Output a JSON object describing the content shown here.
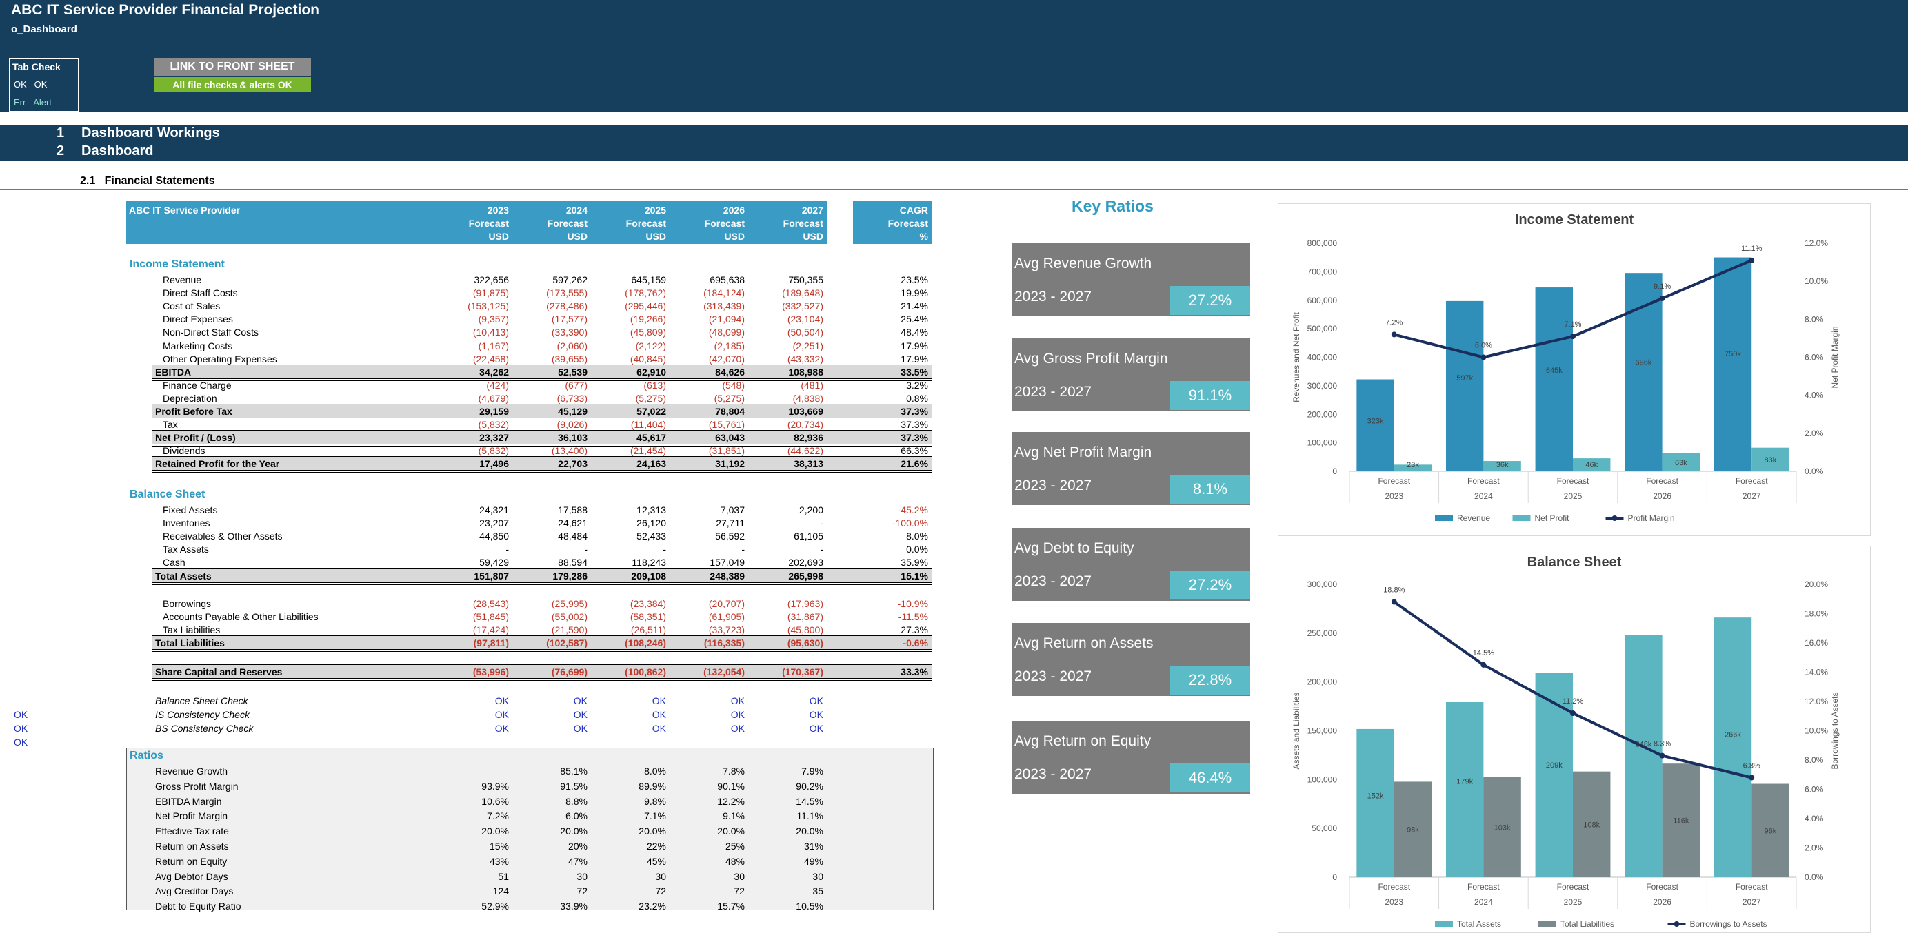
{
  "header": {
    "title": "ABC IT Service Provider Financial Projection",
    "subtitle": "o_Dashboard",
    "tab_check": "Tab Check",
    "ok1": "OK",
    "ok2": "OK",
    "err": "Err",
    "alert": "Alert",
    "link_button": "LINK TO FRONT SHEET",
    "checks_status": "All file checks & alerts OK"
  },
  "sections": {
    "s1_num": "1",
    "s1": "Dashboard Workings",
    "s2_num": "2",
    "s2": "Dashboard",
    "s21_num": "2.1",
    "s21": "Financial Statements"
  },
  "table": {
    "company": "ABC IT Service Provider",
    "years": [
      "2023",
      "2024",
      "2025",
      "2026",
      "2027"
    ],
    "forecast": "Forecast",
    "usd": "USD",
    "cagr": "CAGR",
    "cagr_forecast": "Forecast",
    "pct": "%",
    "income_title": "Income Statement",
    "income_rows": [
      {
        "label": "Revenue",
        "v": [
          "322,656",
          "597,262",
          "645,159",
          "695,638",
          "750,355"
        ],
        "c": "23.5%",
        "neg": false,
        "type": "normal"
      },
      {
        "label": "Direct Staff Costs",
        "v": [
          "(91,875)",
          "(173,555)",
          "(178,762)",
          "(184,124)",
          "(189,648)"
        ],
        "c": "19.9%",
        "neg": true,
        "type": "normal"
      },
      {
        "label": "Cost of Sales",
        "v": [
          "(153,125)",
          "(278,486)",
          "(295,446)",
          "(313,439)",
          "(332,527)"
        ],
        "c": "21.4%",
        "neg": true,
        "type": "normal"
      },
      {
        "label": "Direct Expenses",
        "v": [
          "(9,357)",
          "(17,577)",
          "(19,266)",
          "(21,094)",
          "(23,104)"
        ],
        "c": "25.4%",
        "neg": true,
        "type": "normal"
      },
      {
        "label": "Non-Direct Staff Costs",
        "v": [
          "(10,413)",
          "(33,390)",
          "(45,809)",
          "(48,099)",
          "(50,504)"
        ],
        "c": "48.4%",
        "neg": true,
        "type": "normal"
      },
      {
        "label": "Marketing Costs",
        "v": [
          "(1,167)",
          "(2,060)",
          "(2,122)",
          "(2,185)",
          "(2,251)"
        ],
        "c": "17.9%",
        "neg": true,
        "type": "normal"
      },
      {
        "label": "Other Operating Expenses",
        "v": [
          "(22,458)",
          "(39,655)",
          "(40,845)",
          "(42,070)",
          "(43,332)"
        ],
        "c": "17.9%",
        "neg": true,
        "type": "normal"
      },
      {
        "label": "EBITDA",
        "v": [
          "34,262",
          "52,539",
          "62,910",
          "84,626",
          "108,988"
        ],
        "c": "33.5%",
        "neg": false,
        "type": "total"
      },
      {
        "label": "Finance Charge",
        "v": [
          "(424)",
          "(677)",
          "(613)",
          "(548)",
          "(481)"
        ],
        "c": "3.2%",
        "neg": true,
        "type": "normal"
      },
      {
        "label": "Depreciation",
        "v": [
          "(4,679)",
          "(6,733)",
          "(5,275)",
          "(5,275)",
          "(4,838)"
        ],
        "c": "0.8%",
        "neg": true,
        "type": "normal"
      },
      {
        "label": "Profit Before Tax",
        "v": [
          "29,159",
          "45,129",
          "57,022",
          "78,804",
          "103,669"
        ],
        "c": "37.3%",
        "neg": false,
        "type": "total"
      },
      {
        "label": "Tax",
        "v": [
          "(5,832)",
          "(9,026)",
          "(11,404)",
          "(15,761)",
          "(20,734)"
        ],
        "c": "37.3%",
        "neg": true,
        "type": "normal"
      },
      {
        "label": "Net Profit / (Loss)",
        "v": [
          "23,327",
          "36,103",
          "45,617",
          "63,043",
          "82,936"
        ],
        "c": "37.3%",
        "neg": false,
        "type": "total"
      },
      {
        "label": "Dividends",
        "v": [
          "(5,832)",
          "(13,400)",
          "(21,454)",
          "(31,851)",
          "(44,622)"
        ],
        "c": "66.3%",
        "neg": true,
        "type": "normal"
      },
      {
        "label": "Retained Profit for the Year",
        "v": [
          "17,496",
          "22,703",
          "24,163",
          "31,192",
          "38,313"
        ],
        "c": "21.6%",
        "neg": false,
        "type": "total"
      }
    ],
    "balance_title": "Balance Sheet",
    "asset_rows": [
      {
        "label": "Fixed Assets",
        "v": [
          "24,321",
          "17,588",
          "12,313",
          "7,037",
          "2,200"
        ],
        "c": "-45.2%",
        "neg": false,
        "cneg": true,
        "type": "normal"
      },
      {
        "label": "Inventories",
        "v": [
          "23,207",
          "24,621",
          "26,120",
          "27,711",
          "-"
        ],
        "c": "-100.0%",
        "neg": false,
        "cneg": true,
        "type": "normal"
      },
      {
        "label": "Receivables & Other Assets",
        "v": [
          "44,850",
          "48,484",
          "52,433",
          "56,592",
          "61,105"
        ],
        "c": "8.0%",
        "neg": false,
        "cneg": false,
        "type": "normal"
      },
      {
        "label": "Tax Assets",
        "v": [
          "-",
          "-",
          "-",
          "-",
          "-"
        ],
        "c": "0.0%",
        "neg": false,
        "cneg": false,
        "type": "normal"
      },
      {
        "label": "Cash",
        "v": [
          "59,429",
          "88,594",
          "118,243",
          "157,049",
          "202,693"
        ],
        "c": "35.9%",
        "neg": false,
        "cneg": false,
        "type": "normal"
      },
      {
        "label": "Total Assets",
        "v": [
          "151,807",
          "179,286",
          "209,108",
          "248,389",
          "265,998"
        ],
        "c": "15.1%",
        "neg": false,
        "cneg": false,
        "type": "total"
      }
    ],
    "liab_rows": [
      {
        "label": "Borrowings",
        "v": [
          "(28,543)",
          "(25,995)",
          "(23,384)",
          "(20,707)",
          "(17,963)"
        ],
        "c": "-10.9%",
        "neg": true,
        "cneg": true,
        "type": "normal"
      },
      {
        "label": "Accounts Payable & Other Liabilities",
        "v": [
          "(51,845)",
          "(55,002)",
          "(58,351)",
          "(61,905)",
          "(31,867)"
        ],
        "c": "-11.5%",
        "neg": true,
        "cneg": true,
        "type": "normal"
      },
      {
        "label": "Tax Liabilities",
        "v": [
          "(17,424)",
          "(21,590)",
          "(26,511)",
          "(33,723)",
          "(45,800)"
        ],
        "c": "27.3%",
        "neg": true,
        "cneg": false,
        "type": "normal"
      },
      {
        "label": "Total Liabilities",
        "v": [
          "(97,811)",
          "(102,587)",
          "(108,246)",
          "(116,335)",
          "(95,630)"
        ],
        "c": "-0.6%",
        "neg": true,
        "cneg": true,
        "type": "total"
      }
    ],
    "share_row": {
      "label": "Share Capital and Reserves",
      "v": [
        "(53,996)",
        "(76,699)",
        "(100,862)",
        "(132,054)",
        "(170,367)"
      ],
      "c": "33.3%"
    },
    "checks": [
      {
        "label": "Balance Sheet Check",
        "v": [
          "OK",
          "OK",
          "OK",
          "OK",
          "OK"
        ],
        "left": ""
      },
      {
        "label": "IS Consistency Check",
        "v": [
          "OK",
          "OK",
          "OK",
          "OK",
          "OK"
        ],
        "left": "OK"
      },
      {
        "label": "BS Consistency Check",
        "v": [
          "OK",
          "OK",
          "OK",
          "OK",
          "OK"
        ],
        "left": "OK"
      }
    ],
    "left_ok_extra": "OK",
    "ratios_title": "Ratios",
    "ratio_rows": [
      {
        "label": "Revenue Growth",
        "v": [
          "",
          "85.1%",
          "8.0%",
          "7.8%",
          "7.9%"
        ]
      },
      {
        "label": "Gross Profit Margin",
        "v": [
          "93.9%",
          "91.5%",
          "89.9%",
          "90.1%",
          "90.2%"
        ]
      },
      {
        "label": "EBITDA Margin",
        "v": [
          "10.6%",
          "8.8%",
          "9.8%",
          "12.2%",
          "14.5%"
        ]
      },
      {
        "label": "Net Profit Margin",
        "v": [
          "7.2%",
          "6.0%",
          "7.1%",
          "9.1%",
          "11.1%"
        ]
      },
      {
        "label": "Effective Tax rate",
        "v": [
          "20.0%",
          "20.0%",
          "20.0%",
          "20.0%",
          "20.0%"
        ]
      },
      {
        "label": "Return on Assets",
        "v": [
          "15%",
          "20%",
          "22%",
          "25%",
          "31%"
        ]
      },
      {
        "label": "Return on Equity",
        "v": [
          "43%",
          "47%",
          "45%",
          "48%",
          "49%"
        ]
      },
      {
        "label": "Avg Debtor Days",
        "v": [
          "51",
          "30",
          "30",
          "30",
          "30"
        ]
      },
      {
        "label": "Avg Creditor Days",
        "v": [
          "124",
          "72",
          "72",
          "72",
          "35"
        ]
      },
      {
        "label": "Debt to Equity Ratio",
        "v": [
          "52.9%",
          "33.9%",
          "23.2%",
          "15.7%",
          "10.5%"
        ]
      }
    ]
  },
  "key_ratios": {
    "title": "Key Ratios",
    "cards": [
      {
        "label": "Avg Revenue Growth",
        "years": "2023 - 2027",
        "value": "27.2%"
      },
      {
        "label": "Avg Gross Profit Margin",
        "years": "2023 - 2027",
        "value": "91.1%"
      },
      {
        "label": "Avg Net Profit Margin",
        "years": "2023 - 2027",
        "value": "8.1%"
      },
      {
        "label": "Avg Debt to Equity",
        "years": "2023 - 2027",
        "value": "27.2%"
      },
      {
        "label": "Avg Return on Assets",
        "years": "2023 - 2027",
        "value": "22.8%"
      },
      {
        "label": "Avg Return on Equity",
        "years": "2023 - 2027",
        "value": "46.4%"
      }
    ]
  },
  "colors": {
    "navy": "#163f5e",
    "teal": "#2f9bc0",
    "bar_revenue": "#2f8fb8",
    "bar_teal": "#5bb6c1",
    "bar_grey": "#7a8a8c",
    "line": "#1a2e5e",
    "card": "#7c7c7c",
    "card_value": "#5bbcc8",
    "negative": "#c0392b",
    "ok": "#2030c0",
    "button_grey": "#8a8a8a",
    "button_green": "#7ab52e"
  },
  "chart_data": [
    {
      "type": "bar",
      "title": "Income Statement",
      "categories": [
        "2023",
        "2024",
        "2025",
        "2026",
        "2027"
      ],
      "category_sublabel": "Forecast",
      "ylabel": "Revenues  and Net Profit",
      "y2label": "Net Profit Margin",
      "ylim": [
        0,
        800000
      ],
      "y2lim": [
        0,
        12
      ],
      "yticks": [
        "0",
        "100,000",
        "200,000",
        "300,000",
        "400,000",
        "500,000",
        "600,000",
        "700,000",
        "800,000"
      ],
      "y2ticks": [
        "0.0%",
        "2.0%",
        "4.0%",
        "6.0%",
        "8.0%",
        "10.0%",
        "12.0%"
      ],
      "series": [
        {
          "name": "Revenue",
          "kind": "bar",
          "values": [
            322656,
            597262,
            645159,
            695638,
            750355
          ],
          "labels": [
            "323k",
            "597k",
            "645k",
            "696k",
            "750k"
          ]
        },
        {
          "name": "Net Profit",
          "kind": "bar",
          "values": [
            23327,
            36103,
            45617,
            63043,
            82936
          ],
          "labels": [
            "23k",
            "36k",
            "46k",
            "63k",
            "83k"
          ]
        },
        {
          "name": "Profit Margin",
          "kind": "line",
          "axis": "secondary",
          "values": [
            7.2,
            6.0,
            7.1,
            9.1,
            11.1
          ],
          "labels": [
            "7.2%",
            "6.0%",
            "7.1%",
            "9.1%",
            "11.1%"
          ]
        }
      ],
      "legend": "bottom"
    },
    {
      "type": "bar",
      "title": "Balance Sheet",
      "categories": [
        "2023",
        "2024",
        "2025",
        "2026",
        "2027"
      ],
      "category_sublabel": "Forecast",
      "ylabel": "Assets and Liabilities",
      "y2label": "Borrowings to Assets",
      "ylim": [
        0,
        300000
      ],
      "y2lim": [
        0,
        20
      ],
      "yticks": [
        "0",
        "50,000",
        "100,000",
        "150,000",
        "200,000",
        "250,000",
        "300,000"
      ],
      "y2ticks": [
        "0.0%",
        "2.0%",
        "4.0%",
        "6.0%",
        "8.0%",
        "10.0%",
        "12.0%",
        "14.0%",
        "16.0%",
        "18.0%",
        "20.0%"
      ],
      "series": [
        {
          "name": "Total Assets",
          "kind": "bar",
          "values": [
            151807,
            179286,
            209108,
            248389,
            265998
          ],
          "labels": [
            "152k",
            "179k",
            "209k",
            "248k",
            "266k"
          ]
        },
        {
          "name": "Total Liabilities",
          "kind": "bar",
          "values": [
            97811,
            102587,
            108246,
            116335,
            95630
          ],
          "labels": [
            "98k",
            "103k",
            "108k",
            "116k",
            "96k"
          ]
        },
        {
          "name": "Borrowings to Assets",
          "kind": "line",
          "axis": "secondary",
          "values": [
            18.8,
            14.5,
            11.2,
            8.3,
            6.8
          ],
          "labels": [
            "18.8%",
            "14.5%",
            "11.2%",
            "8.3%",
            "6.8%"
          ]
        }
      ],
      "legend": "bottom"
    }
  ]
}
